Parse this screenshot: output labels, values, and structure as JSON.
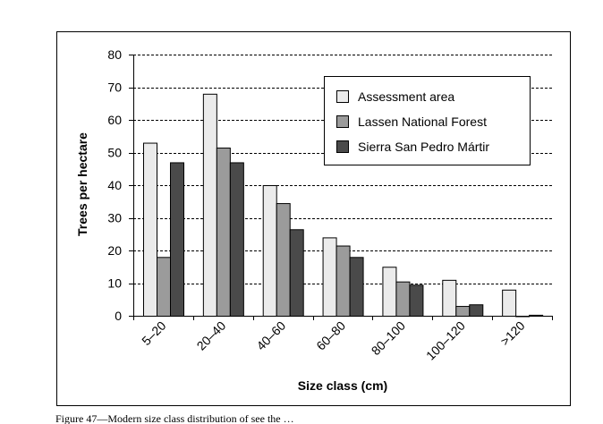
{
  "chart_data": {
    "type": "bar",
    "title": "",
    "xlabel": "Size class (cm)",
    "ylabel": "Trees per hectare",
    "ylim": [
      0,
      80
    ],
    "yticks": [
      0,
      10,
      20,
      30,
      40,
      50,
      60,
      70,
      80
    ],
    "grid": "horizontal-dashed",
    "legend_position": "top-right",
    "categories": [
      "5–20",
      "20–40",
      "40–60",
      "60–80",
      "80–100",
      "100–120",
      ">120"
    ],
    "series": [
      {
        "name": "Assessment area",
        "color": "#ebebeb",
        "values": [
          53,
          68,
          40,
          24,
          15,
          11,
          8
        ]
      },
      {
        "name": "Lassen National Forest",
        "color": "#9b9b9b",
        "values": [
          18,
          51.5,
          34.5,
          21.5,
          10.5,
          3,
          0
        ]
      },
      {
        "name": "Sierra San Pedro Mártir",
        "color": "#4a4a4a",
        "values": [
          47,
          47,
          26.5,
          18,
          9.5,
          3.5,
          0.3
        ]
      }
    ]
  },
  "caption": "Figure 47—Modern size class distribution of see the …"
}
